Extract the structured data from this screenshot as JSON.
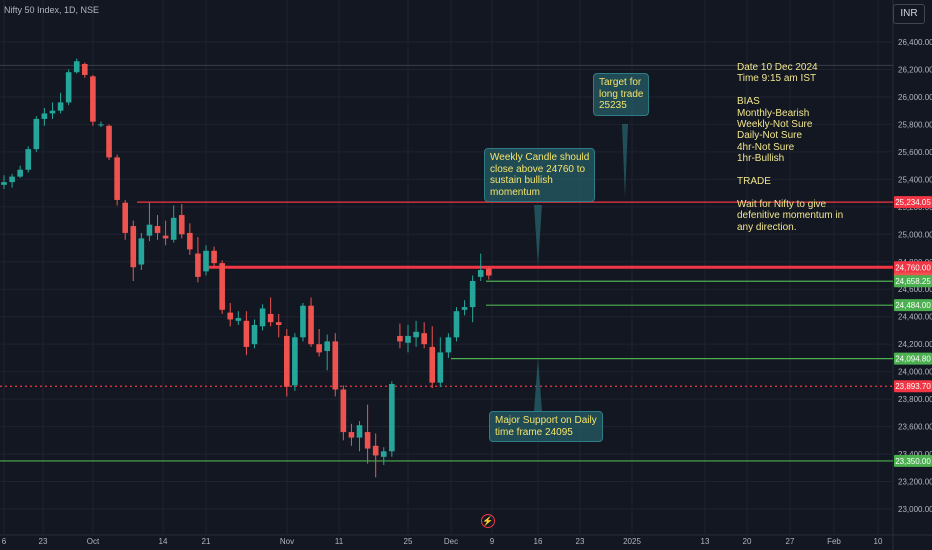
{
  "header": {
    "symbol_line": "Nifty 50 Index, 1D, NSE",
    "currency": "INR"
  },
  "colors": {
    "background": "#131722",
    "up": "#26a69a",
    "down": "#ef5350",
    "grid": "#1f2330",
    "red_line": "#f23645",
    "green_line": "#4caf50",
    "note_text": "#f0e68c"
  },
  "notes": {
    "main": "Date 10 Dec 2024\nTime 9:15 am IST\n\nBIAS\nMonthly-Bearish\nWeekly-Not Sure\nDaily-Not Sure\n4hr-Not Sure\n1hr-Bullish\n\nTRADE\n\nWait for Nifty to give\ndefenitive momentum in\nany direction.",
    "target": "Target for\nlong trade\n25235",
    "weekly": "Weekly Candle should\nclose above 24760 to\nsustain bullish\nmomentum",
    "support": "Major Support on Daily\ntime frame 24095"
  },
  "chart_data": {
    "type": "candlestick",
    "title": "Nifty 50 Index, 1D, NSE",
    "ylim": [
      23000,
      26450
    ],
    "y_ticks": [
      26400,
      26200,
      26000,
      25800,
      25600,
      25400,
      25200,
      25000,
      24800,
      24600,
      24400,
      24200,
      24000,
      23800,
      23600,
      23400,
      23200,
      23000
    ],
    "x_ticks": [
      "6",
      "23",
      "Oct",
      "14",
      "21",
      "Nov",
      "11",
      "25",
      "Dec",
      "9",
      "16",
      "23",
      "2025",
      "13",
      "20",
      "27",
      "Feb",
      "10"
    ],
    "candles": [
      [
        25360,
        25430,
        25330,
        25380
      ],
      [
        25380,
        25440,
        25340,
        25420
      ],
      [
        25420,
        25500,
        25410,
        25470
      ],
      [
        25470,
        25640,
        25450,
        25620
      ],
      [
        25620,
        25860,
        25600,
        25840
      ],
      [
        25840,
        25920,
        25790,
        25880
      ],
      [
        25880,
        25960,
        25840,
        25900
      ],
      [
        25900,
        26030,
        25880,
        25960
      ],
      [
        25960,
        26200,
        25940,
        26180
      ],
      [
        26180,
        26280,
        26170,
        26260
      ],
      [
        26240,
        26250,
        26140,
        26160
      ],
      [
        26150,
        26160,
        25790,
        25820
      ],
      [
        25800,
        25820,
        25780,
        25800
      ],
      [
        25790,
        25800,
        25540,
        25560
      ],
      [
        25560,
        25580,
        25210,
        25250
      ],
      [
        25230,
        25250,
        24960,
        25010
      ],
      [
        25060,
        25100,
        24660,
        24760
      ],
      [
        24780,
        25010,
        24740,
        24970
      ],
      [
        24990,
        25230,
        24950,
        25070
      ],
      [
        25060,
        25140,
        24960,
        25010
      ],
      [
        24990,
        25100,
        24920,
        24970
      ],
      [
        24960,
        25210,
        24940,
        25120
      ],
      [
        25140,
        25220,
        24970,
        25000
      ],
      [
        25010,
        25080,
        24850,
        24890
      ],
      [
        24860,
        24980,
        24650,
        24690
      ],
      [
        24730,
        24920,
        24700,
        24880
      ],
      [
        24880,
        24910,
        24760,
        24790
      ],
      [
        24790,
        24810,
        24420,
        24450
      ],
      [
        24430,
        24500,
        24330,
        24380
      ],
      [
        24370,
        24440,
        24340,
        24390
      ],
      [
        24370,
        24440,
        24120,
        24180
      ],
      [
        24200,
        24380,
        24170,
        24340
      ],
      [
        24330,
        24490,
        24300,
        24460
      ],
      [
        24420,
        24540,
        24330,
        24360
      ],
      [
        24360,
        24420,
        24250,
        24340
      ],
      [
        24260,
        24310,
        23820,
        23890
      ],
      [
        23900,
        24280,
        23860,
        24250
      ],
      [
        24250,
        24500,
        24220,
        24480
      ],
      [
        24480,
        24540,
        24180,
        24200
      ],
      [
        24200,
        24310,
        24110,
        24140
      ],
      [
        24150,
        24270,
        24010,
        24220
      ],
      [
        24220,
        24280,
        23820,
        23870
      ],
      [
        23870,
        23900,
        23500,
        23560
      ],
      [
        23560,
        23620,
        23460,
        23520
      ],
      [
        23520,
        23640,
        23420,
        23610
      ],
      [
        23560,
        23760,
        23330,
        23440
      ],
      [
        23460,
        23550,
        23230,
        23390
      ],
      [
        23380,
        23450,
        23320,
        23420
      ],
      [
        23420,
        23930,
        23380,
        23910
      ],
      [
        24260,
        24350,
        24170,
        24220
      ],
      [
        24210,
        24340,
        24140,
        24260
      ],
      [
        24250,
        24370,
        24180,
        24290
      ],
      [
        24280,
        24360,
        24170,
        24200
      ],
      [
        24180,
        24330,
        23880,
        23920
      ],
      [
        23920,
        24250,
        23890,
        24140
      ],
      [
        24140,
        24280,
        24100,
        24250
      ],
      [
        24250,
        24470,
        24220,
        24440
      ],
      [
        24450,
        24520,
        24410,
        24470
      ],
      [
        24470,
        24700,
        24360,
        24660
      ],
      [
        24690,
        24860,
        24660,
        24740
      ],
      [
        24750,
        24760,
        24670,
        24700
      ]
    ],
    "levels": [
      {
        "value": 25234.05,
        "label": "25,234.05",
        "color": "#f23645",
        "style": "solid"
      },
      {
        "value": 24760.0,
        "label": "24,760.00",
        "color": "#f23645",
        "style": "solid"
      },
      {
        "value": 24677.8,
        "label": "24,677.80",
        "color": "#ef5350",
        "style": "tag"
      },
      {
        "value": 24658.25,
        "label": "24,658.25",
        "color": "#4caf50",
        "style": "solid"
      },
      {
        "value": 24484.0,
        "label": "24,484.00",
        "color": "#4caf50",
        "style": "solid"
      },
      {
        "value": 24094.8,
        "label": "24,094.80",
        "color": "#4caf50",
        "style": "solid"
      },
      {
        "value": 23893.7,
        "label": "23,893.70",
        "color": "#f23645",
        "style": "dotted"
      },
      {
        "value": 23350.0,
        "label": "23,350.00",
        "color": "#4caf50",
        "style": "solid"
      }
    ]
  }
}
